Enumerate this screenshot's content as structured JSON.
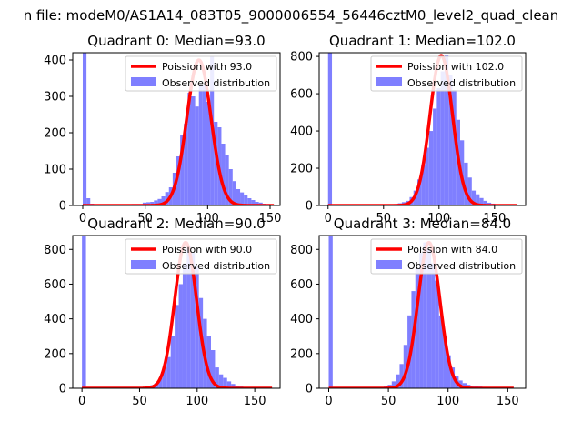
{
  "figure_title": "n file: modeM0/AS1A14_083T05_9000006554_56446cztM0_level2_quad_clean",
  "colors": {
    "hist": "#7f7fff",
    "poisson": "#ff0000",
    "axes": "#000000",
    "background": "#ffffff"
  },
  "chart_data": [
    {
      "type": "bar",
      "title": "Quadrant 0: Median=93.0",
      "legend_position": "top-right",
      "xlim": [
        -8,
        158
      ],
      "ylim": [
        0,
        420
      ],
      "xticks": [
        0,
        50,
        100,
        150
      ],
      "yticks": [
        0,
        100,
        200,
        300,
        400
      ],
      "grid": false,
      "series": [
        {
          "name": "Observed distribution",
          "type": "histogram",
          "bin_width": 3,
          "bin_starts": [
            0,
            3,
            6,
            9,
            12,
            15,
            18,
            21,
            24,
            27,
            30,
            33,
            36,
            39,
            42,
            45,
            48,
            51,
            54,
            57,
            60,
            63,
            66,
            69,
            72,
            75,
            78,
            81,
            84,
            87,
            90,
            93,
            96,
            99,
            102,
            105,
            108,
            111,
            114,
            117,
            120,
            123,
            126,
            129,
            132,
            135,
            138,
            141,
            144,
            147,
            150
          ],
          "counts": [
            420,
            20,
            5,
            3,
            3,
            2,
            2,
            2,
            2,
            2,
            3,
            3,
            3,
            4,
            4,
            4,
            8,
            9,
            10,
            14,
            18,
            25,
            37,
            50,
            90,
            135,
            195,
            225,
            310,
            300,
            272,
            330,
            330,
            285,
            410,
            230,
            215,
            170,
            140,
            100,
            67,
            45,
            36,
            28,
            20,
            15,
            10,
            8,
            5,
            4,
            3
          ]
        },
        {
          "name": "Poission with 93.0",
          "type": "poisson",
          "mean": 93.0,
          "scale_peak": 400,
          "x_range": [
            0,
            153
          ]
        }
      ]
    },
    {
      "type": "bar",
      "title": "Quadrant 1: Median=102.0",
      "legend_position": "top-right",
      "xlim": [
        -8,
        178
      ],
      "ylim": [
        0,
        820
      ],
      "xticks": [
        0,
        50,
        100,
        150
      ],
      "yticks": [
        0,
        200,
        400,
        600,
        800
      ],
      "grid": false,
      "series": [
        {
          "name": "Observed distribution",
          "type": "histogram",
          "bin_width": 3.5,
          "bin_starts": [
            0,
            3.5,
            7,
            10.5,
            14,
            17.5,
            21,
            24.5,
            28,
            31.5,
            35,
            38.5,
            42,
            45.5,
            49,
            52.5,
            56,
            59.5,
            63,
            66.5,
            70,
            73.5,
            77,
            80.5,
            84,
            87.5,
            91,
            94.5,
            98,
            101.5,
            105,
            108.5,
            112,
            115.5,
            119,
            122.5,
            126,
            129.5,
            133,
            136.5,
            140,
            143.5,
            147,
            150.5,
            154,
            157.5,
            161,
            164.5,
            168,
            171.5
          ],
          "counts": [
            820,
            4,
            3,
            3,
            2,
            2,
            2,
            2,
            2,
            2,
            3,
            3,
            3,
            4,
            4,
            5,
            6,
            8,
            12,
            18,
            25,
            45,
            80,
            140,
            220,
            310,
            400,
            520,
            630,
            720,
            810,
            700,
            620,
            460,
            350,
            230,
            150,
            80,
            60,
            40,
            25,
            15,
            10,
            7,
            5,
            4,
            3,
            2,
            2,
            1
          ]
        },
        {
          "name": "Poission with 102.0",
          "type": "poisson",
          "mean": 102.0,
          "scale_peak": 805,
          "x_range": [
            0,
            170
          ]
        }
      ]
    },
    {
      "type": "bar",
      "title": "Quadrant 2: Median=90.0",
      "legend_position": "top-right",
      "xlim": [
        -8,
        172
      ],
      "ylim": [
        0,
        880
      ],
      "xticks": [
        0,
        50,
        100,
        150
      ],
      "yticks": [
        0,
        200,
        400,
        600,
        800
      ],
      "grid": false,
      "series": [
        {
          "name": "Observed distribution",
          "type": "histogram",
          "bin_width": 3.5,
          "bin_starts": [
            0,
            3.5,
            7,
            10.5,
            14,
            17.5,
            21,
            24.5,
            28,
            31.5,
            35,
            38.5,
            42,
            45.5,
            49,
            52.5,
            56,
            59.5,
            63,
            66.5,
            70,
            73.5,
            77,
            80.5,
            84,
            87.5,
            91,
            94.5,
            98,
            101.5,
            105,
            108.5,
            112,
            115.5,
            119,
            122.5,
            126,
            129.5,
            133,
            136.5,
            140,
            143.5,
            147,
            150.5,
            154,
            157.5,
            161,
            164.5
          ],
          "counts": [
            880,
            3,
            3,
            2,
            2,
            2,
            2,
            2,
            2,
            2,
            3,
            3,
            3,
            4,
            5,
            6,
            10,
            18,
            30,
            60,
            120,
            180,
            300,
            480,
            600,
            720,
            820,
            780,
            700,
            520,
            400,
            300,
            220,
            120,
            80,
            60,
            40,
            25,
            15,
            10,
            7,
            5,
            4,
            3,
            2,
            2,
            1,
            1
          ]
        },
        {
          "name": "Poission with 90.0",
          "type": "poisson",
          "mean": 90.0,
          "scale_peak": 840,
          "x_range": [
            0,
            165
          ]
        }
      ]
    },
    {
      "type": "bar",
      "title": "Quadrant 3: Median=84.0",
      "legend_position": "top-right",
      "xlim": [
        -8,
        165
      ],
      "ylim": [
        0,
        880
      ],
      "xticks": [
        0,
        50,
        100,
        150
      ],
      "yticks": [
        0,
        200,
        400,
        600,
        800
      ],
      "grid": false,
      "series": [
        {
          "name": "Observed distribution",
          "type": "histogram",
          "bin_width": 3.3,
          "bin_starts": [
            0,
            3.3,
            6.6,
            9.9,
            13.2,
            16.5,
            19.8,
            23.1,
            26.4,
            29.7,
            33,
            36.3,
            39.6,
            42.9,
            46.2,
            49.5,
            52.8,
            56.1,
            59.4,
            62.7,
            66,
            69.3,
            72.6,
            75.9,
            79.2,
            82.5,
            85.8,
            89.1,
            92.4,
            95.7,
            99,
            102.3,
            105.6,
            108.9,
            112.2,
            115.5,
            118.8,
            122.1,
            125.4,
            128.7,
            132,
            135.3,
            138.6,
            141.9,
            145.2,
            148.5,
            151.8,
            155.1
          ],
          "counts": [
            880,
            3,
            3,
            2,
            2,
            2,
            2,
            2,
            2,
            2,
            3,
            3,
            4,
            6,
            10,
            20,
            40,
            80,
            140,
            250,
            420,
            560,
            690,
            780,
            840,
            800,
            720,
            620,
            420,
            300,
            190,
            120,
            70,
            45,
            30,
            20,
            15,
            12,
            10,
            8,
            5,
            4,
            3,
            2,
            2,
            1,
            1,
            1
          ]
        },
        {
          "name": "Poission with 84.0",
          "type": "poisson",
          "mean": 84.0,
          "scale_peak": 840,
          "x_range": [
            0,
            155
          ]
        }
      ]
    }
  ]
}
